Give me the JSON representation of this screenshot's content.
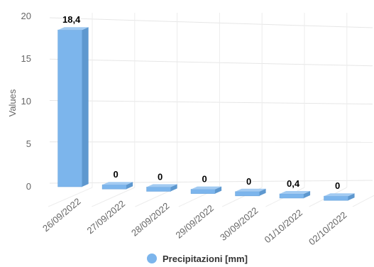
{
  "chart_data": {
    "type": "bar",
    "style": "3d-column",
    "categories": [
      "26/09/2022",
      "27/09/2022",
      "28/09/2022",
      "29/09/2022",
      "30/09/2022",
      "01/10/2022",
      "02/10/2022"
    ],
    "series": [
      {
        "name": "Precipitazioni [mm]",
        "values": [
          18.4,
          0,
          0,
          0,
          0,
          0.4,
          0
        ],
        "color": "#7cb5ec"
      }
    ],
    "data_labels": [
      "18,4",
      "0",
      "0",
      "0",
      "0",
      "0,4",
      "0"
    ],
    "ylabel": "Values",
    "ylim": [
      0,
      20
    ],
    "yticks": [
      "0",
      "5",
      "10",
      "15",
      "20"
    ],
    "grid": true,
    "legend_position": "bottom"
  }
}
